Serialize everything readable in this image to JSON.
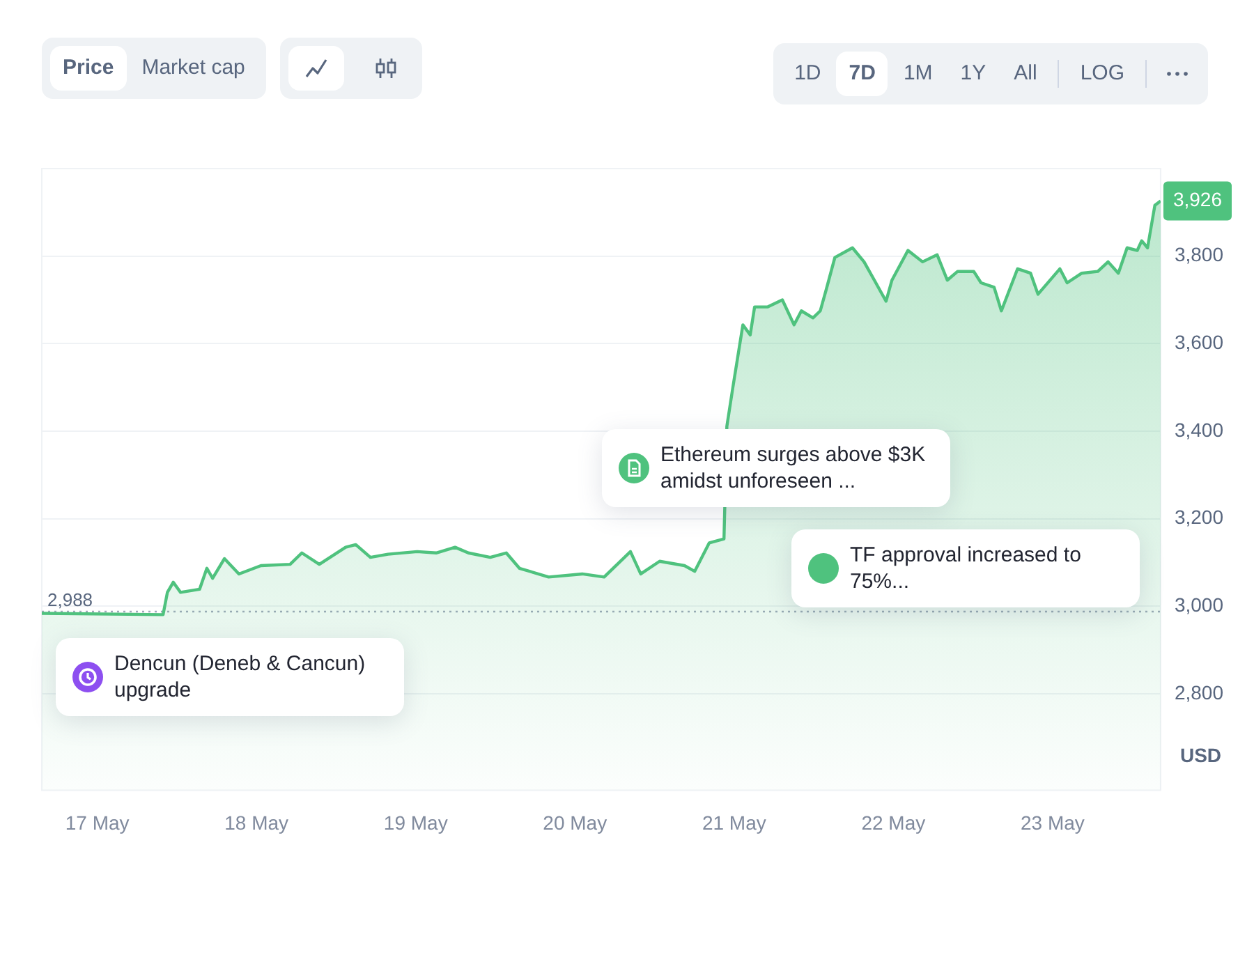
{
  "chart_data": {
    "type": "area",
    "ylabel": "USD",
    "x": [
      "--05-16T15:38",
      "--05-17T09:55",
      "--05-17T10:34",
      "--05-17T11:27",
      "--05-17T12:33",
      "--05-17T15:25",
      "--05-17T16:31",
      "--05-17T17:23",
      "--05-17T19:10",
      "--05-17T21:21",
      "--05-18T00:40",
      "--05-18T05:04",
      "--05-18T06:50",
      "--05-18T09:28",
      "--05-18T13:26",
      "--05-18T14:58",
      "--05-18T17:10",
      "--05-18T19:49",
      "--05-19T00:13",
      "--05-19T03:05",
      "--05-19T05:56",
      "--05-19T07:56",
      "--05-19T11:14",
      "--05-19T13:39",
      "--05-19T15:38",
      "--05-19T20:02",
      "--05-20T01:06",
      "--05-20T04:24",
      "--05-20T08:22",
      "--05-20T09:55",
      "--05-20T12:46",
      "--05-20T16:31",
      "--05-20T18:03",
      "--05-20T20:15",
      "--05-20T22:28",
      "--05-20T22:54",
      "--05-20T23:47",
      "--05-21T01:19",
      "--05-21T02:25",
      "--05-21T03:05",
      "--05-21T05:04",
      "--05-21T07:16",
      "--05-21T09:02",
      "--05-21T10:08",
      "--05-21T11:53",
      "--05-21T12:59",
      "--05-21T13:52",
      "--05-21T15:11",
      "--05-21T17:50",
      "--05-21T19:35",
      "--05-21T21:08",
      "--05-21T22:54",
      "--05-21T23:47",
      "--05-22T02:12",
      "--05-22T04:24",
      "--05-22T06:36",
      "--05-22T08:08",
      "--05-22T09:41",
      "--05-22T12:07",
      "--05-22T13:13",
      "--05-22T15:11",
      "--05-22T16:17",
      "--05-22T18:43",
      "--05-22T20:41",
      "--05-22T21:48",
      "--05-23T01:06",
      "--05-23T02:12",
      "--05-23T04:24",
      "--05-23T06:49",
      "--05-23T08:22",
      "--05-23T09:55",
      "--05-23T11:14",
      "--05-23T12:46",
      "--05-23T13:26",
      "--05-23T14:19",
      "--05-23T15:25",
      "--05-23T16:17"
    ],
    "values": [
      2984,
      2981,
      3032,
      3055,
      3032,
      3039,
      3087,
      3064,
      3109,
      3074,
      3093,
      3096,
      3122,
      3096,
      3135,
      3141,
      3112,
      3119,
      3125,
      3122,
      3135,
      3122,
      3112,
      3122,
      3087,
      3067,
      3074,
      3067,
      3125,
      3074,
      3103,
      3093,
      3080,
      3145,
      3154,
      3411,
      3498,
      3643,
      3620,
      3684,
      3684,
      3700,
      3643,
      3675,
      3659,
      3675,
      3723,
      3797,
      3819,
      3787,
      3745,
      3697,
      3745,
      3813,
      3787,
      3803,
      3745,
      3765,
      3765,
      3739,
      3729,
      3675,
      3771,
      3761,
      3713,
      3771,
      3739,
      3761,
      3765,
      3787,
      3761,
      3819,
      3813,
      3835,
      3819,
      3916,
      3926
    ],
    "value_labels": [
      null,
      null,
      null,
      null,
      null,
      null,
      null,
      null,
      null,
      null,
      null,
      null,
      null,
      null,
      null,
      null,
      null,
      null,
      null,
      null,
      null,
      null,
      null,
      null,
      null,
      null,
      null,
      null,
      null,
      null,
      null,
      null,
      null,
      null,
      null,
      null,
      null,
      null,
      null,
      null,
      null,
      null,
      null,
      null,
      null,
      null,
      null,
      null,
      null,
      null,
      null,
      null,
      null,
      null,
      null,
      null,
      null,
      null,
      null,
      null,
      null,
      null,
      null,
      null,
      null,
      null,
      null,
      null,
      null,
      null,
      null,
      null,
      null,
      null,
      null,
      null,
      "3,926"
    ],
    "color": "#4fc27e",
    "xlim": [
      "--05-16T15:38",
      "--05-23T16:17"
    ],
    "xticks": [
      {
        "value": "--05-17",
        "label": "17 May"
      },
      {
        "value": "--05-18",
        "label": "18 May"
      },
      {
        "value": "--05-19",
        "label": "19 May"
      },
      {
        "value": "--05-20",
        "label": "20 May"
      },
      {
        "value": "--05-21",
        "label": "21 May"
      },
      {
        "value": "--05-22",
        "label": "22 May"
      },
      {
        "value": "--05-23",
        "label": "23 May"
      }
    ],
    "ylim": [
      2580,
      4000
    ],
    "yticks": [
      {
        "value": 2800,
        "label": "2,800"
      },
      {
        "value": 3000,
        "label": "3,000"
      },
      {
        "value": 3200,
        "label": "3,200"
      },
      {
        "value": 3400,
        "label": "3,400"
      },
      {
        "value": 3600,
        "label": "3,600"
      },
      {
        "value": 3800,
        "label": "3,800"
      }
    ],
    "grid": "y",
    "legend": false,
    "ref_lines": [
      {
        "axis": "y",
        "value": 2988,
        "label": "2,988",
        "line_style": "dotted",
        "color": "#a1a7bb"
      }
    ],
    "annotations": [
      "Price",
      "Market cap",
      "1D",
      "7D",
      "1M",
      "1Y",
      "All",
      "LOG",
      "Dencun (Deneb & Cancun) upgrade",
      "Ethereum surges above $3K amidst unforeseen ...",
      "TF approval increased to 75%..."
    ]
  }
}
